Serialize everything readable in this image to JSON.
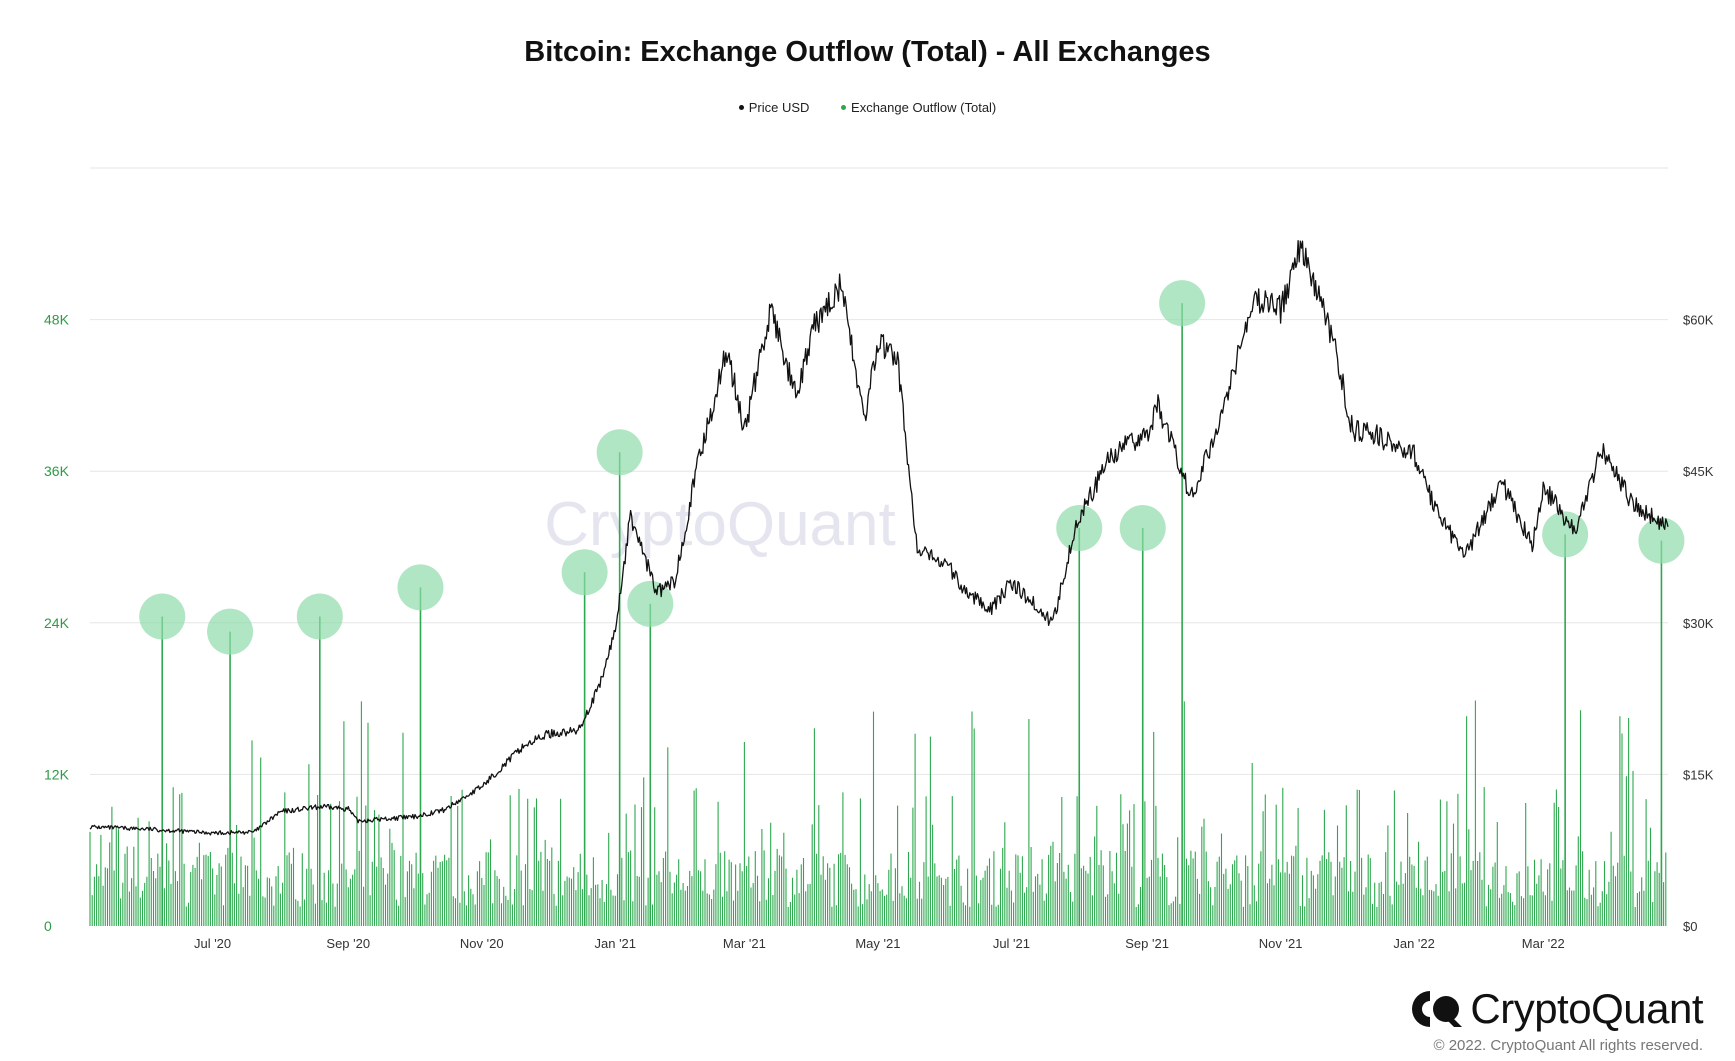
{
  "chart_data": {
    "type": "bar",
    "title": "Bitcoin: Exchange Outflow (Total) - All Exchanges",
    "legend": [
      {
        "label": "Price USD",
        "color": "#111111"
      },
      {
        "label": "Exchange Outflow (Total)",
        "color": "#2ea84f"
      }
    ],
    "legend_position": "top-center",
    "grid": true,
    "x_range": [
      "2020-05-06",
      "2022-04-27"
    ],
    "x_ticks": [
      {
        "date": "2020-07-01",
        "label": "Jul '20"
      },
      {
        "date": "2020-09-01",
        "label": "Sep '20"
      },
      {
        "date": "2020-11-01",
        "label": "Nov '20"
      },
      {
        "date": "2021-01-01",
        "label": "Jan '21"
      },
      {
        "date": "2021-03-01",
        "label": "Mar '21"
      },
      {
        "date": "2021-05-01",
        "label": "May '21"
      },
      {
        "date": "2021-07-01",
        "label": "Jul '21"
      },
      {
        "date": "2021-09-01",
        "label": "Sep '21"
      },
      {
        "date": "2021-11-01",
        "label": "Nov '21"
      },
      {
        "date": "2022-01-01",
        "label": "Jan '22"
      },
      {
        "date": "2022-03-01",
        "label": "Mar '22"
      }
    ],
    "y_left": {
      "label": "",
      "range": [
        0,
        60000
      ],
      "ticks": [
        {
          "value": 0,
          "label": "0"
        },
        {
          "value": 12000,
          "label": "12K"
        },
        {
          "value": 24000,
          "label": "24K"
        },
        {
          "value": 36000,
          "label": "36K"
        },
        {
          "value": 48000,
          "label": "48K"
        }
      ]
    },
    "y_right": {
      "label": "",
      "range": [
        0,
        75000
      ],
      "ticks": [
        {
          "value": 0,
          "label": "$0"
        },
        {
          "value": 15000,
          "label": "$15K"
        },
        {
          "value": 30000,
          "label": "$30K"
        },
        {
          "value": 45000,
          "label": "$45K"
        },
        {
          "value": 60000,
          "label": "$60K"
        }
      ]
    },
    "series": [
      {
        "name": "Price USD",
        "kind": "line",
        "axis": "right",
        "color": "#111111",
        "x": [
          "2020-05-06",
          "2020-06-01",
          "2020-07-01",
          "2020-07-20",
          "2020-08-01",
          "2020-08-20",
          "2020-09-01",
          "2020-09-05",
          "2020-10-01",
          "2020-10-15",
          "2020-11-01",
          "2020-11-20",
          "2020-12-01",
          "2020-12-15",
          "2020-12-25",
          "2021-01-01",
          "2021-01-08",
          "2021-01-20",
          "2021-01-28",
          "2021-02-08",
          "2021-02-21",
          "2021-03-01",
          "2021-03-13",
          "2021-03-25",
          "2021-04-01",
          "2021-04-14",
          "2021-04-25",
          "2021-05-01",
          "2021-05-10",
          "2021-05-19",
          "2021-06-01",
          "2021-06-10",
          "2021-06-22",
          "2021-07-01",
          "2021-07-20",
          "2021-07-30",
          "2021-08-15",
          "2021-09-01",
          "2021-09-06",
          "2021-09-21",
          "2021-10-01",
          "2021-10-20",
          "2021-11-01",
          "2021-11-10",
          "2021-11-25",
          "2021-12-04",
          "2021-12-15",
          "2022-01-01",
          "2022-01-10",
          "2022-01-24",
          "2022-02-10",
          "2022-02-24",
          "2022-03-01",
          "2022-03-15",
          "2022-03-28",
          "2022-04-10",
          "2022-04-27"
        ],
        "values": [
          9800,
          9600,
          9200,
          9300,
          11300,
          11800,
          11600,
          10400,
          10800,
          11500,
          13800,
          17800,
          19000,
          19300,
          23800,
          29300,
          40600,
          33000,
          34000,
          46000,
          57000,
          49000,
          61000,
          52000,
          58900,
          63500,
          50000,
          57800,
          56000,
          37000,
          36000,
          33000,
          31500,
          34000,
          30000,
          39500,
          46500,
          48800,
          51500,
          42500,
          48000,
          62000,
          61000,
          67500,
          58000,
          49000,
          48500,
          46600,
          41800,
          36500,
          44000,
          37500,
          43500,
          39000,
          47300,
          42000,
          39500
        ]
      },
      {
        "name": "Exchange Outflow (Total)",
        "kind": "bar",
        "axis": "left",
        "color": "#2ea84f",
        "note": "continuous daily columns, typical 2K–8K BTC with frequent spikes to 12K–20K",
        "highlighted_spikes": [
          {
            "date": "2020-06-08",
            "value": 24500
          },
          {
            "date": "2020-07-09",
            "value": 23300
          },
          {
            "date": "2020-08-19",
            "value": 24500
          },
          {
            "date": "2020-10-04",
            "value": 26800
          },
          {
            "date": "2020-12-18",
            "value": 28000
          },
          {
            "date": "2021-01-03",
            "value": 37500
          },
          {
            "date": "2021-01-17",
            "value": 25500
          },
          {
            "date": "2021-08-01",
            "value": 31500
          },
          {
            "date": "2021-08-30",
            "value": 31500
          },
          {
            "date": "2021-09-17",
            "value": 49300
          },
          {
            "date": "2022-03-11",
            "value": 31000
          },
          {
            "date": "2022-04-24",
            "value": 30500
          }
        ]
      }
    ],
    "watermark": "CryptoQuant"
  },
  "footer": {
    "brand": "CryptoQuant",
    "copyright": "© 2022. CryptoQuant All rights reserved."
  }
}
